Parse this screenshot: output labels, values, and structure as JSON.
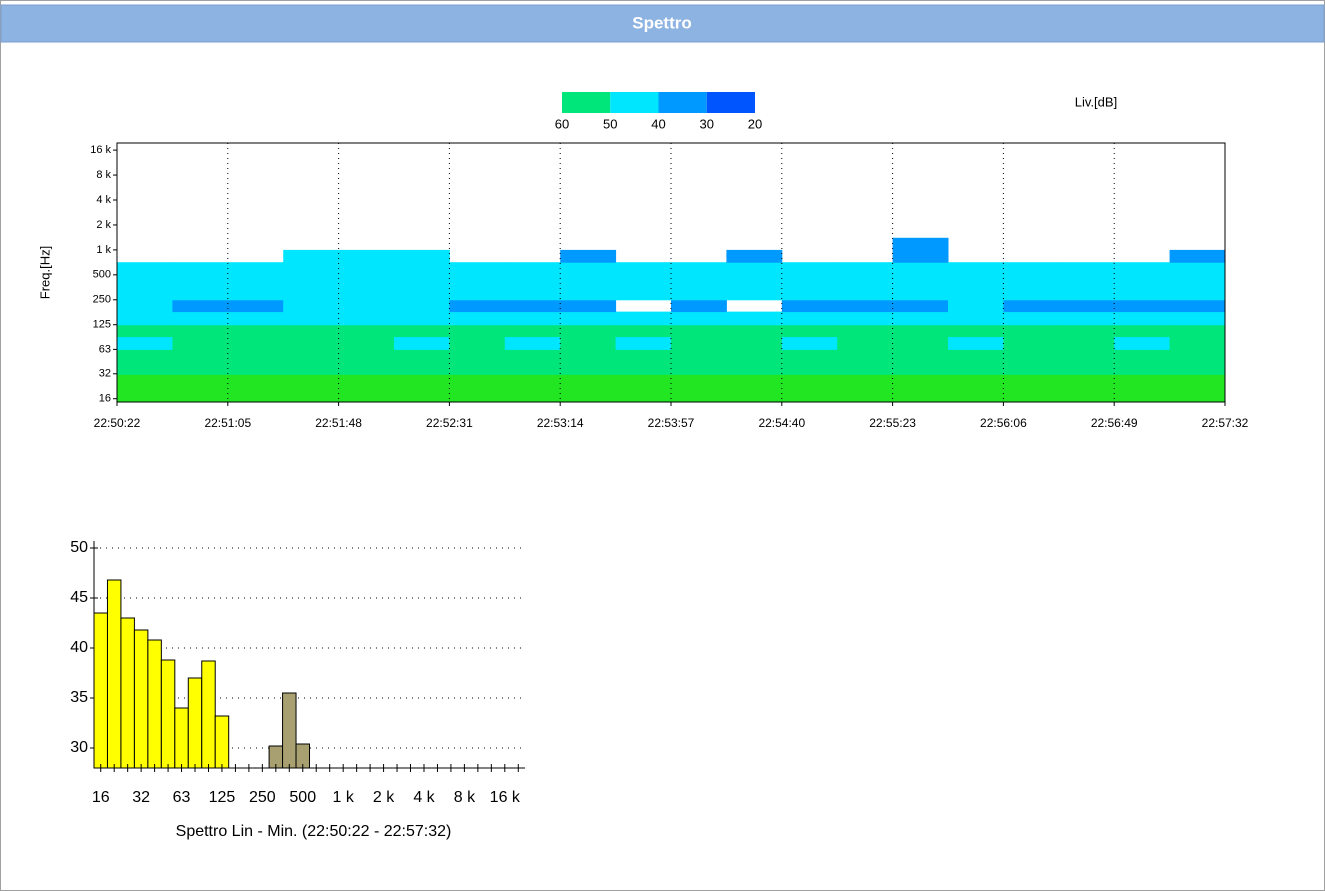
{
  "header": {
    "title": "Spettro"
  },
  "chart_data": [
    {
      "type": "spectrogram",
      "ylabel": "Freq.[Hz]",
      "legend_title": "Liv.[dB]",
      "legend_ticks": [
        60,
        50,
        40,
        30,
        20
      ],
      "legend_colors": [
        "#00e67a",
        "#00e6ff",
        "#0099ff",
        "#0055ff"
      ],
      "over_color": "#22e622",
      "log_y": true,
      "ylim": [
        14.6,
        19500
      ],
      "yticks": [
        {
          "value": 16000,
          "label": "16 k"
        },
        {
          "value": 8000,
          "label": "8 k"
        },
        {
          "value": 4000,
          "label": "4 k"
        },
        {
          "value": 2000,
          "label": "2 k"
        },
        {
          "value": 1000,
          "label": "1 k"
        },
        500,
        250,
        125,
        63,
        32,
        16
      ],
      "xtick_labels": [
        "22:50:22",
        "22:51:05",
        "22:51:48",
        "22:52:31",
        "22:53:14",
        "22:53:57",
        "22:54:40",
        "22:55:23",
        "22:56:06",
        "22:56:49",
        "22:57:32"
      ],
      "grid": true,
      "freq_edges": [
        14.6,
        22,
        31.5,
        45,
        63,
        90,
        125,
        180,
        250,
        355,
        500,
        710,
        1000,
        1400,
        2000
      ],
      "levels": [
        [
          64,
          61,
          55,
          53,
          49,
          51,
          46,
          40,
          45,
          44,
          43,
          null,
          null,
          null
        ],
        [
          64,
          62,
          56,
          54,
          51,
          50,
          47,
          36,
          45,
          45,
          43,
          null,
          null,
          null
        ],
        [
          63,
          61,
          55,
          53,
          50,
          52,
          47,
          38,
          45,
          44,
          42,
          null,
          null,
          null
        ],
        [
          64,
          62,
          56,
          54,
          52,
          51,
          46,
          41,
          46,
          45,
          44,
          43,
          null,
          null
        ],
        [
          64,
          61,
          55,
          54,
          51,
          50,
          48,
          40,
          45,
          45,
          44,
          42,
          null,
          null
        ],
        [
          63,
          62,
          56,
          53,
          49,
          51,
          47,
          42,
          46,
          44,
          43,
          41,
          null,
          null
        ],
        [
          64,
          61,
          55,
          53,
          50,
          51,
          46,
          37,
          45,
          44,
          43,
          null,
          null,
          null
        ],
        [
          63,
          62,
          56,
          54,
          48,
          50,
          47,
          38,
          46,
          45,
          42,
          null,
          null,
          null
        ],
        [
          64,
          61,
          55,
          53,
          51,
          52,
          46,
          35,
          45,
          44,
          43,
          38,
          null,
          null
        ],
        [
          64,
          62,
          56,
          54,
          49,
          51,
          47,
          null,
          45,
          45,
          42,
          null,
          null,
          null
        ],
        [
          63,
          61,
          55,
          53,
          52,
          50,
          46,
          36,
          46,
          44,
          43,
          null,
          null,
          null
        ],
        [
          64,
          62,
          56,
          54,
          50,
          51,
          47,
          null,
          45,
          45,
          42,
          38,
          null,
          null
        ],
        [
          64,
          61,
          55,
          53,
          48,
          50,
          46,
          37,
          45,
          44,
          43,
          null,
          null,
          null
        ],
        [
          63,
          62,
          56,
          54,
          51,
          52,
          47,
          39,
          46,
          45,
          42,
          null,
          null,
          null
        ],
        [
          64,
          61,
          57,
          53,
          50,
          50,
          46,
          38,
          45,
          44,
          43,
          38,
          33,
          null
        ],
        [
          65,
          62,
          56,
          54,
          49,
          51,
          47,
          40,
          46,
          45,
          42,
          null,
          null,
          null
        ],
        [
          64,
          61,
          55,
          53,
          51,
          50,
          46,
          38,
          45,
          44,
          43,
          null,
          null,
          null
        ],
        [
          63,
          62,
          56,
          54,
          50,
          51,
          47,
          39,
          45,
          45,
          42,
          null,
          null,
          null
        ],
        [
          64,
          61,
          55,
          53,
          49,
          52,
          46,
          37,
          46,
          44,
          43,
          null,
          null,
          null
        ],
        [
          64,
          62,
          56,
          54,
          51,
          50,
          47,
          38,
          45,
          45,
          42,
          36,
          null,
          null
        ]
      ]
    },
    {
      "type": "bar",
      "xlabel": "Spettro Lin -  Min. (22:50:22 - 22:57:32)",
      "categories": [
        "16",
        null,
        null,
        "32",
        null,
        null,
        "63",
        null,
        null,
        "125",
        null,
        null,
        "250",
        null,
        null,
        "500",
        null,
        null,
        "1 k",
        null,
        null,
        "2 k",
        null,
        null,
        "4 k",
        null,
        null,
        "8 k",
        null,
        null,
        "16 k",
        null
      ],
      "series": [
        {
          "color": "#ffff00",
          "values": [
            43.5,
            46.8,
            43,
            41.8,
            40.8,
            38.8,
            34,
            37,
            38.7,
            33.2,
            null,
            null,
            null,
            null,
            null,
            null,
            null,
            null,
            null,
            null,
            null,
            null,
            null,
            null,
            null,
            null,
            null,
            null,
            null,
            null,
            null,
            null
          ]
        },
        {
          "color": "#a8a070",
          "values": [
            null,
            null,
            null,
            null,
            null,
            null,
            null,
            null,
            null,
            null,
            null,
            null,
            null,
            30.2,
            35.5,
            30.4,
            null,
            null,
            null,
            null,
            null,
            null,
            null,
            null,
            null,
            null,
            null,
            null,
            null,
            null,
            null,
            null
          ]
        }
      ],
      "ylim": [
        28,
        50.7
      ],
      "yticks": [
        30,
        35,
        40,
        45,
        50
      ],
      "grid": true
    }
  ]
}
